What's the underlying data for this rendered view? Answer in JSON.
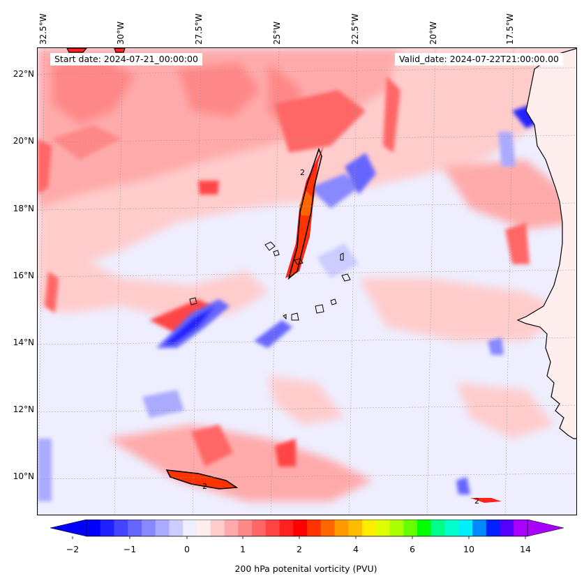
{
  "map": {
    "lon_labels": [
      "32.5°W",
      "30°W",
      "27.5°W",
      "25°W",
      "22.5°W",
      "20°W",
      "17.5°W"
    ],
    "lat_labels": [
      "22°N",
      "20°N",
      "18°N",
      "16°N",
      "14°N",
      "12°N",
      "10°N"
    ],
    "start_date": "Start date: 2024-07-21_00:00:00",
    "valid_date": "Valid_date: 2024-07-22T21:00:00.00",
    "contour_labels": [
      "2",
      "2",
      "2"
    ]
  },
  "colorbar": {
    "tick_labels": [
      "−2",
      "−1",
      "0",
      "1",
      "2",
      "4",
      "6",
      "10",
      "14"
    ],
    "title": "200 hPa potenital vorticity (PVU)",
    "colors": [
      "#0000ff",
      "#2020ff",
      "#4444ff",
      "#6666ff",
      "#8888ff",
      "#aaaaff",
      "#ccccff",
      "#eeeeff",
      "#ffeeee",
      "#ffcccc",
      "#ffaaaa",
      "#ff8888",
      "#ff6666",
      "#ff4444",
      "#ff2020",
      "#ff0000",
      "#ff3300",
      "#ff6600",
      "#ff9900",
      "#ffbb00",
      "#ffee00",
      "#ddff00",
      "#aaff00",
      "#66ff00",
      "#00ff00",
      "#00ff88",
      "#00ffcc",
      "#00eeff",
      "#0088ff",
      "#0022ff",
      "#5500ff",
      "#aa00ff"
    ]
  }
}
